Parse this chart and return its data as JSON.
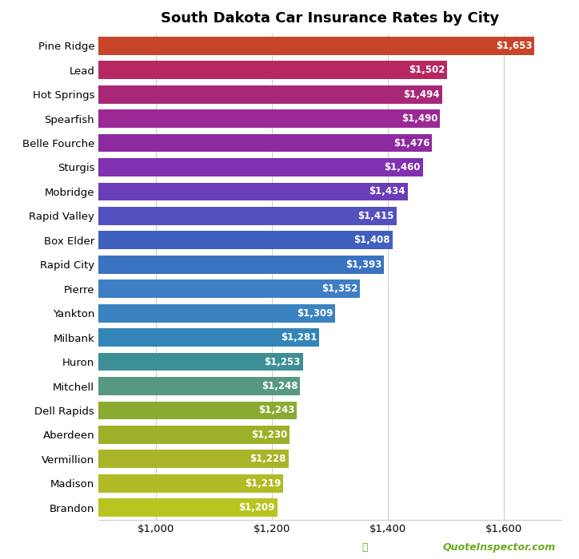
{
  "title": "South Dakota Car Insurance Rates by City",
  "categories": [
    "Brandon",
    "Madison",
    "Vermillion",
    "Aberdeen",
    "Dell Rapids",
    "Mitchell",
    "Huron",
    "Milbank",
    "Yankton",
    "Pierre",
    "Rapid City",
    "Box Elder",
    "Rapid Valley",
    "Mobridge",
    "Sturgis",
    "Belle Fourche",
    "Spearfish",
    "Hot Springs",
    "Lead",
    "Pine Ridge"
  ],
  "values": [
    1209,
    1219,
    1228,
    1230,
    1243,
    1248,
    1253,
    1281,
    1309,
    1352,
    1393,
    1408,
    1415,
    1434,
    1460,
    1476,
    1490,
    1494,
    1502,
    1653
  ],
  "bar_colors": [
    "#b8c420",
    "#b0bb25",
    "#a8b528",
    "#9eb02a",
    "#8aab30",
    "#569880",
    "#3d8f96",
    "#3385b8",
    "#3a82c0",
    "#3e7ec5",
    "#3a74c0",
    "#4060c0",
    "#5550c0",
    "#6b3db8",
    "#8030b0",
    "#8e2aa0",
    "#9a2895",
    "#a82878",
    "#b82860",
    "#c84428"
  ],
  "xlim_start": 900,
  "xlim_end": 1700,
  "xticks": [
    1000,
    1200,
    1400,
    1600
  ],
  "background_color": "#ffffff",
  "grid_color": "#cccccc",
  "bar_height": 0.75,
  "watermark": "QuoteInspector.com",
  "watermark_color": "#6aaa1e"
}
